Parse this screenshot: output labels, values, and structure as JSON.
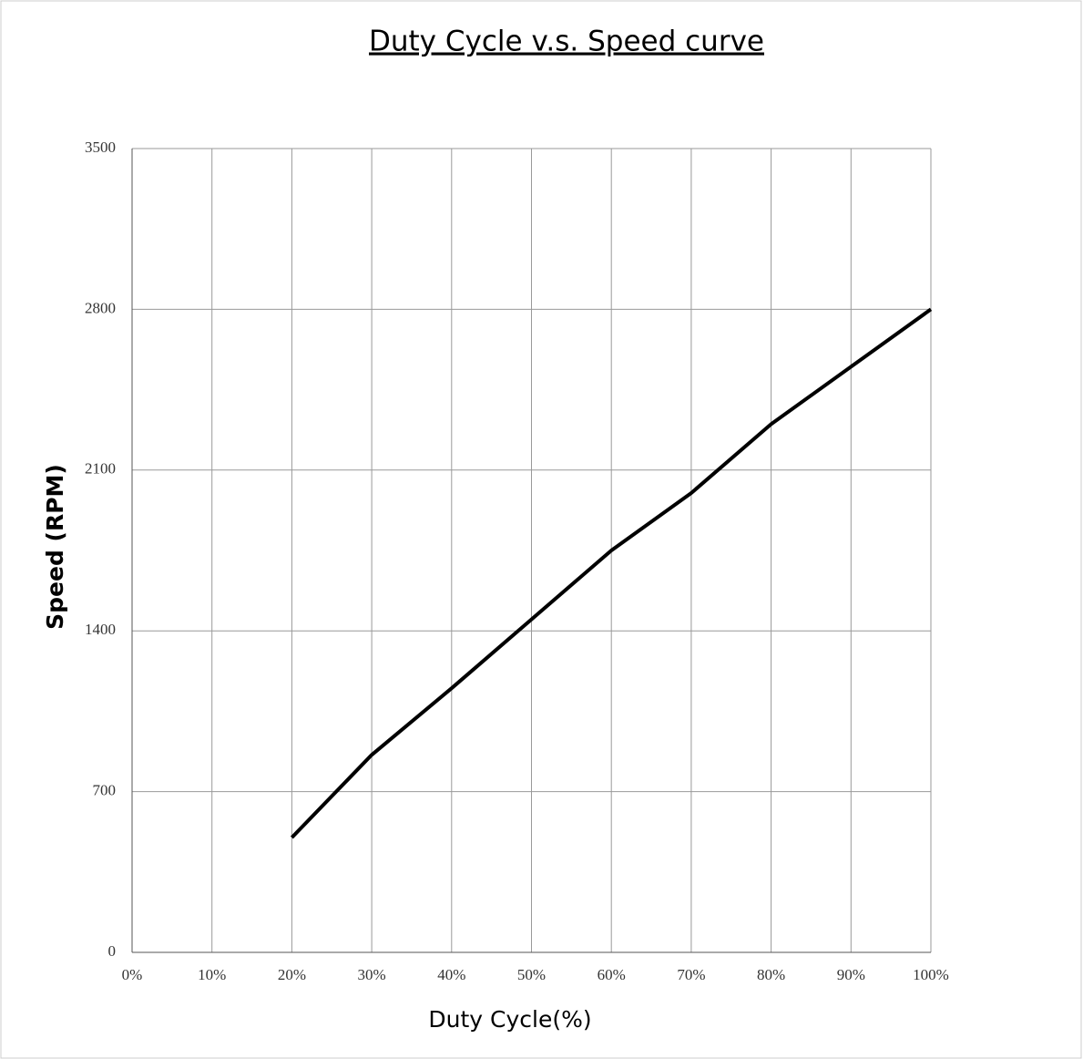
{
  "chart_data": {
    "type": "line",
    "title": "Duty  Cycle v.s. Speed curve",
    "xlabel": "Duty Cycle(%)",
    "ylabel": "Speed (RPM)",
    "x": [
      20,
      30,
      40,
      50,
      60,
      70,
      80,
      90,
      100
    ],
    "values": [
      500,
      860,
      1150,
      1450,
      1750,
      2000,
      2300,
      2550,
      2800
    ],
    "color": "#000000",
    "xlim": [
      0,
      100
    ],
    "xticks": [
      {
        "value": 0,
        "label": "0%"
      },
      {
        "value": 10,
        "label": "10%"
      },
      {
        "value": 20,
        "label": "20%"
      },
      {
        "value": 30,
        "label": "30%"
      },
      {
        "value": 40,
        "label": "40%"
      },
      {
        "value": 50,
        "label": "50%"
      },
      {
        "value": 60,
        "label": "60%"
      },
      {
        "value": 70,
        "label": "70%"
      },
      {
        "value": 80,
        "label": "80%"
      },
      {
        "value": 90,
        "label": "90%"
      },
      {
        "value": 100,
        "label": "100%"
      }
    ],
    "ylim": [
      0,
      3500
    ],
    "yticks": [
      0,
      700,
      1400,
      2100,
      2800,
      3500
    ],
    "grid": true
  }
}
